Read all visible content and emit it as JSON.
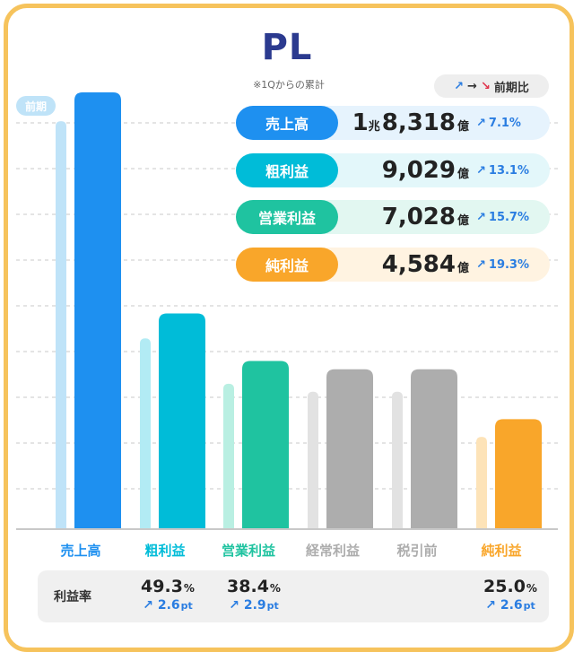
{
  "title": "PL",
  "subtitle": "※1Qからの累計",
  "legend": {
    "label": "前期比"
  },
  "previous_tag": "前期",
  "summary": [
    {
      "label": "売上高",
      "value_prefix": "1",
      "value_prefix_unit": "兆",
      "value": "8,318",
      "unit": "億",
      "change": "7.1%"
    },
    {
      "label": "粗利益",
      "value_prefix": "",
      "value_prefix_unit": "",
      "value": "9,029",
      "unit": "億",
      "change": "13.1%"
    },
    {
      "label": "営業利益",
      "value_prefix": "",
      "value_prefix_unit": "",
      "value": "7,028",
      "unit": "億",
      "change": "15.7%"
    },
    {
      "label": "純利益",
      "value_prefix": "",
      "value_prefix_unit": "",
      "value": "4,584",
      "unit": "億",
      "change": "19.3%"
    }
  ],
  "ratio_label": "利益率",
  "ratios": [
    {
      "category": "粗利益",
      "value": "49.3",
      "unit": "%",
      "change": "2.6",
      "change_unit": "pt"
    },
    {
      "category": "営業利益",
      "value": "38.4",
      "unit": "%",
      "change": "2.9",
      "change_unit": "pt"
    },
    {
      "category": "純利益",
      "value": "25.0",
      "unit": "%",
      "change": "2.6",
      "change_unit": "pt"
    }
  ],
  "colors": {
    "frame": "#f6c35c",
    "title": "#2b3a8f",
    "revenue": "#1e90f0",
    "revenue_prev": "#bfe3f8",
    "gross": "#00bcd8",
    "gross_prev": "#b2ebf4",
    "operating": "#1fc3a0",
    "operating_prev": "#b9efe2",
    "gray": "#adadad",
    "gray_prev": "#e2e2e2",
    "net": "#f9a62a",
    "net_prev": "#fde3b8",
    "change": "#2a7de1",
    "change_down": "#e0334b"
  },
  "chart_data": {
    "type": "bar",
    "unit": "億円",
    "categories": [
      "売上高",
      "粗利益",
      "営業利益",
      "経常利益",
      "税引前",
      "純利益"
    ],
    "series": [
      {
        "name": "前期",
        "values": [
          17105,
          7983,
          6074,
          5740,
          5740,
          3842
        ]
      },
      {
        "values": [
          18318,
          9029,
          7028,
          6680,
          6680,
          4584
        ]
      }
    ],
    "ylim": [
      0,
      18318
    ],
    "grid": true
  }
}
